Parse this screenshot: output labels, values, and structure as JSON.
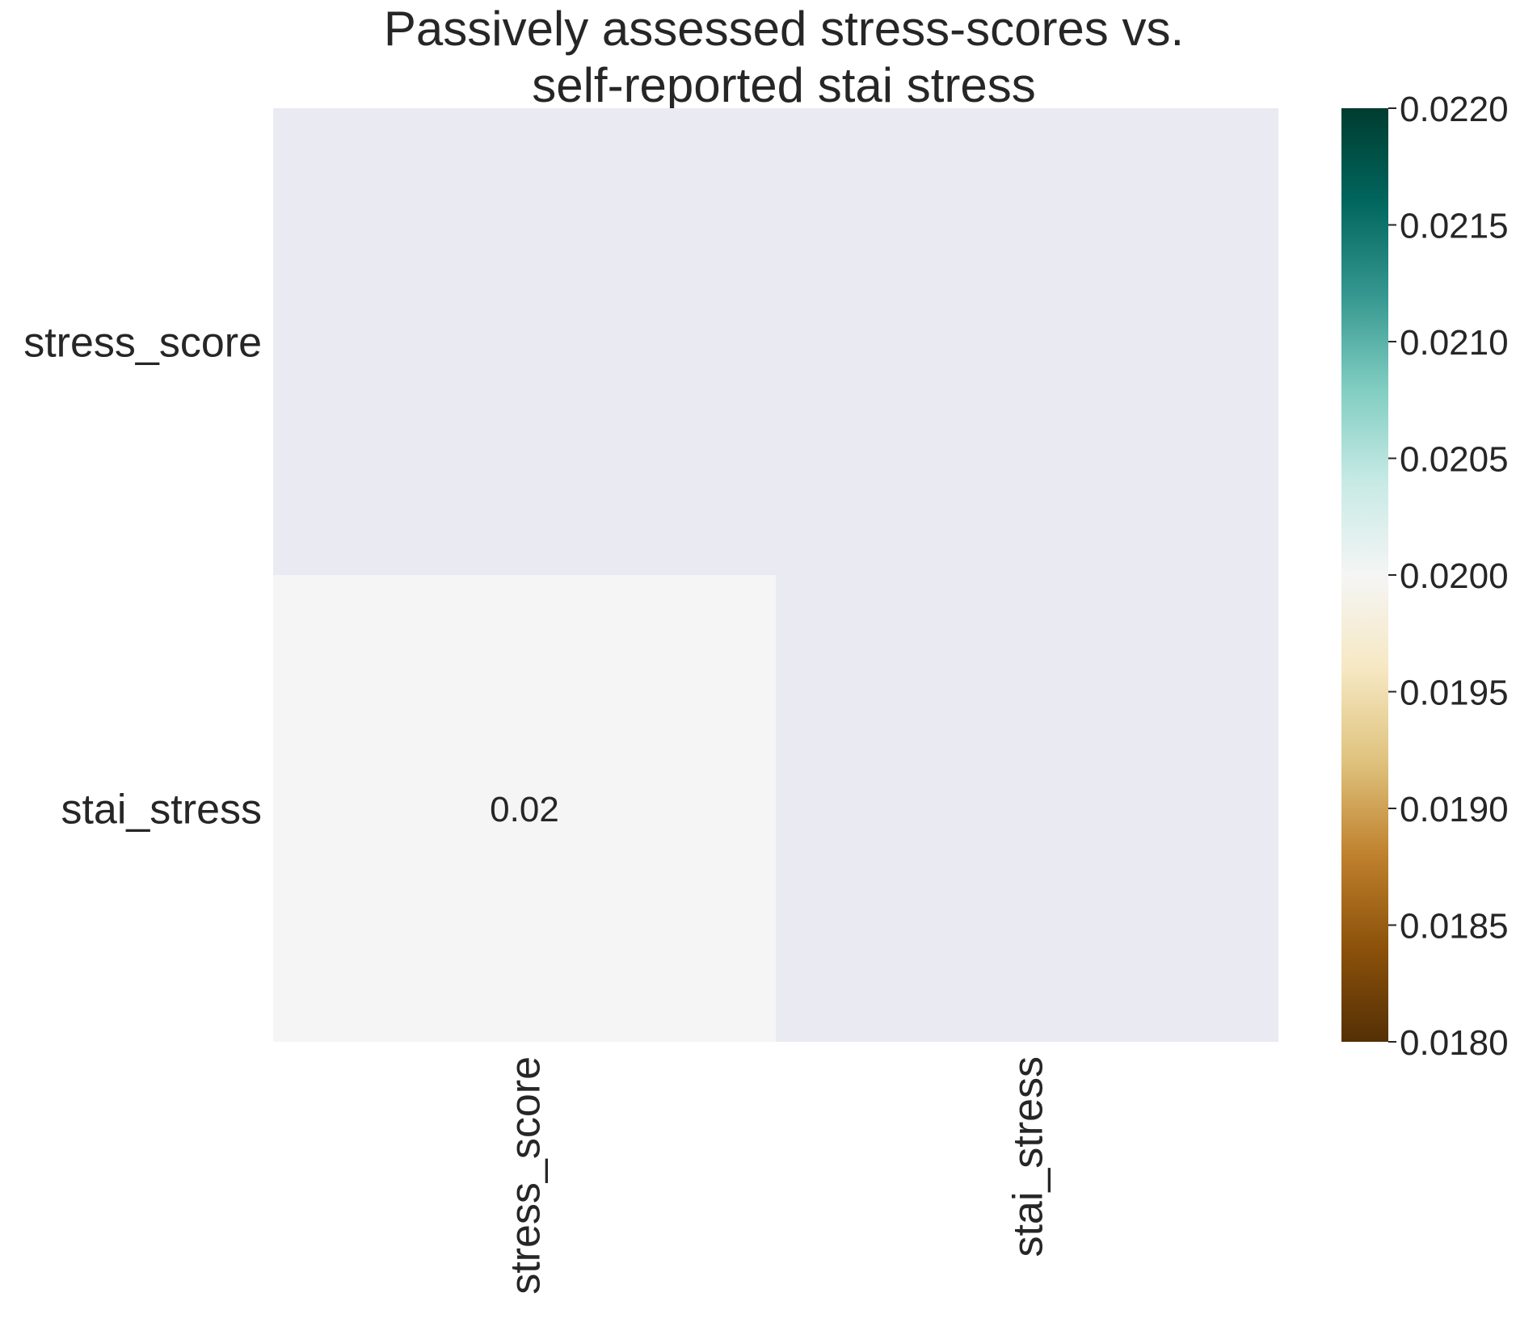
{
  "chart_data": {
    "type": "heatmap",
    "title_lines": [
      "Passively assessed stress-scores vs.",
      "self-reported stai stress"
    ],
    "row_labels": [
      "stress_score",
      "stai_stress"
    ],
    "col_labels": [
      "stress_score",
      "stai_stress"
    ],
    "values": [
      [
        null,
        null
      ],
      [
        0.02,
        null
      ]
    ],
    "annotations": [
      [
        "",
        ""
      ],
      [
        "0.02",
        ""
      ]
    ],
    "masked_color": "#EAEAF2",
    "colormap": "BrBG",
    "colorbar": {
      "vmin": 0.018,
      "vmax": 0.022,
      "ticks": [
        0.018,
        0.0185,
        0.019,
        0.0195,
        0.02,
        0.0205,
        0.021,
        0.0215,
        0.022
      ],
      "tick_labels": [
        "0.0180",
        "0.0185",
        "0.0190",
        "0.0195",
        "0.0200",
        "0.0205",
        "0.0210",
        "0.0215",
        "0.0220"
      ],
      "gradient_stops": [
        "#543005",
        "#8c510a",
        "#bf812d",
        "#dfc27d",
        "#f6e8c3",
        "#f5f5f5",
        "#c7eae5",
        "#80cdc1",
        "#35978f",
        "#01665e",
        "#003c30"
      ]
    }
  }
}
